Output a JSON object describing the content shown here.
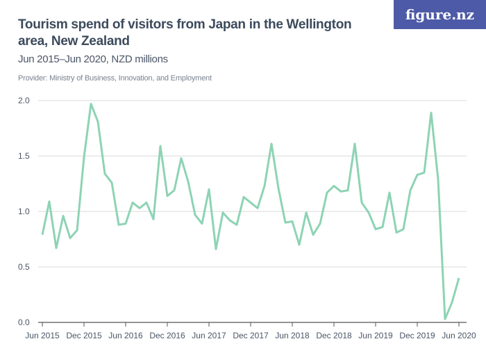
{
  "logo": "figure.nz",
  "chart_data": {
    "type": "line",
    "title": "Tourism spend of visitors from Japan in the Wellington area, New Zealand",
    "subtitle": "Jun 2015–Jun 2020, NZD millions",
    "provider": "Provider: Ministry of Business, Innovation, and Employment",
    "x_start": "Jun 2015",
    "x_frequency": "monthly",
    "x_tick_labels": [
      "Jun 2015",
      "Dec 2015",
      "Jun 2016",
      "Dec 2016",
      "Jun 2017",
      "Dec 2017",
      "Jun 2018",
      "Dec 2018",
      "Jun 2019",
      "Dec 2019",
      "Jun 2020"
    ],
    "y_tick_labels": [
      "0.0",
      "0.5",
      "1.0",
      "1.5",
      "2.0"
    ],
    "ylim": [
      0,
      2.0
    ],
    "grid": true,
    "line_color": "#8dd3b4",
    "values": [
      0.79,
      1.09,
      0.67,
      0.96,
      0.76,
      0.83,
      1.49,
      1.97,
      1.81,
      1.34,
      1.26,
      0.88,
      0.89,
      1.08,
      1.03,
      1.08,
      0.93,
      1.59,
      1.14,
      1.19,
      1.48,
      1.27,
      0.97,
      0.89,
      1.2,
      0.66,
      0.99,
      0.92,
      0.88,
      1.13,
      1.08,
      1.03,
      1.23,
      1.61,
      1.21,
      0.9,
      0.91,
      0.7,
      0.99,
      0.79,
      0.89,
      1.17,
      1.23,
      1.18,
      1.19,
      1.61,
      1.08,
      0.99,
      0.84,
      0.86,
      1.17,
      0.81,
      0.84,
      1.19,
      1.33,
      1.35,
      1.89,
      1.29,
      0.03,
      0.18,
      0.4
    ]
  }
}
